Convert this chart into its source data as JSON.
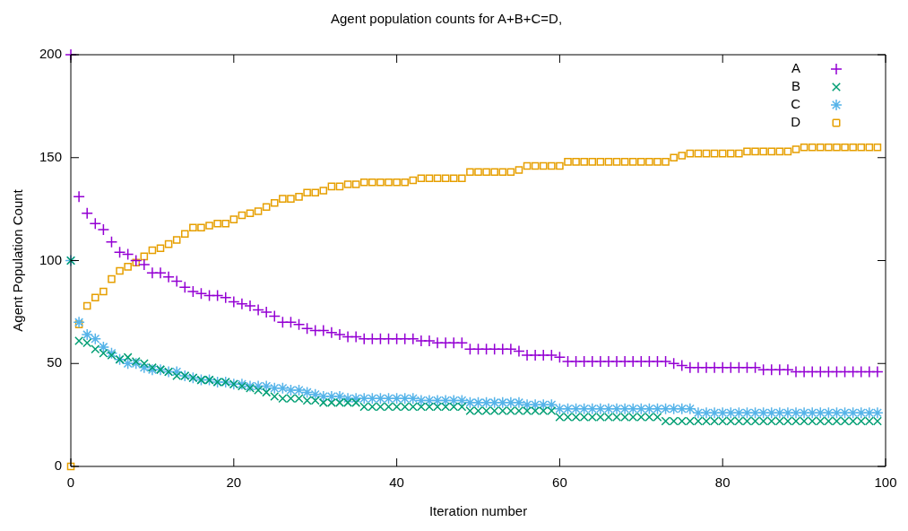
{
  "chart_data": {
    "type": "scatter",
    "title": "Agent population counts for A+B+C=D,",
    "xlabel": "Iteration number",
    "ylabel": "Agent Population Count",
    "x": [
      0,
      1,
      2,
      3,
      4,
      5,
      6,
      7,
      8,
      9,
      10,
      11,
      12,
      13,
      14,
      15,
      16,
      17,
      18,
      19,
      20,
      21,
      22,
      23,
      24,
      25,
      26,
      27,
      28,
      29,
      30,
      31,
      32,
      33,
      34,
      35,
      36,
      37,
      38,
      39,
      40,
      41,
      42,
      43,
      44,
      45,
      46,
      47,
      48,
      49,
      50,
      51,
      52,
      53,
      54,
      55,
      56,
      57,
      58,
      59,
      60,
      61,
      62,
      63,
      64,
      65,
      66,
      67,
      68,
      69,
      70,
      71,
      72,
      73,
      74,
      75,
      76,
      77,
      78,
      79,
      80,
      81,
      82,
      83,
      84,
      85,
      86,
      87,
      88,
      89,
      90,
      91,
      92,
      93,
      94,
      95,
      96,
      97,
      98,
      99
    ],
    "xlim": [
      0,
      100
    ],
    "xticks": [
      0,
      20,
      40,
      60,
      80,
      100
    ],
    "ylim": [
      0,
      200
    ],
    "yticks": [
      0,
      50,
      100,
      150,
      200
    ],
    "grid": false,
    "legend": "top right",
    "series": [
      {
        "name": "A",
        "color": "#9400d3",
        "values": [
          200,
          131,
          123,
          118,
          115,
          109,
          104,
          103,
          100,
          98,
          94,
          94,
          92,
          90,
          87,
          85,
          84,
          83,
          83,
          82,
          80,
          79,
          78,
          76,
          75,
          73,
          70,
          70,
          69,
          67,
          66,
          66,
          65,
          64,
          63,
          63,
          62,
          62,
          62,
          62,
          62,
          62,
          62,
          61,
          61,
          60,
          60,
          60,
          60,
          57,
          57,
          57,
          57,
          57,
          57,
          56,
          54,
          54,
          54,
          54,
          53,
          51,
          51,
          51,
          51,
          51,
          51,
          51,
          51,
          51,
          51,
          51,
          51,
          51,
          50,
          49,
          48,
          48,
          48,
          48,
          48,
          48,
          48,
          48,
          48,
          47,
          47,
          47,
          47,
          46,
          46,
          46,
          46,
          46,
          46,
          46,
          46,
          46,
          46,
          46
        ]
      },
      {
        "name": "B",
        "color": "#009e73",
        "values": [
          100,
          61,
          60,
          57,
          55,
          54,
          52,
          53,
          51,
          50,
          48,
          47,
          46,
          44,
          44,
          43,
          42,
          42,
          41,
          41,
          40,
          39,
          38,
          37,
          36,
          34,
          33,
          33,
          33,
          32,
          32,
          31,
          31,
          31,
          31,
          31,
          29,
          29,
          29,
          29,
          29,
          29,
          29,
          29,
          29,
          29,
          29,
          29,
          29,
          27,
          27,
          27,
          27,
          27,
          27,
          27,
          27,
          27,
          27,
          27,
          24,
          24,
          24,
          24,
          24,
          24,
          24,
          24,
          24,
          24,
          24,
          24,
          24,
          22,
          22,
          22,
          22,
          22,
          22,
          22,
          22,
          22,
          22,
          22,
          22,
          22,
          22,
          22,
          22,
          22,
          22,
          22,
          22,
          22,
          22,
          22,
          22,
          22,
          22,
          22
        ]
      },
      {
        "name": "C",
        "color": "#56b4e9",
        "values": [
          100,
          70,
          64,
          62,
          58,
          55,
          52,
          50,
          50,
          48,
          47,
          47,
          46,
          46,
          44,
          43,
          42,
          42,
          41,
          41,
          40,
          40,
          39,
          39,
          39,
          38,
          38,
          37,
          37,
          36,
          35,
          34,
          34,
          34,
          33,
          33,
          33,
          33,
          33,
          33,
          33,
          33,
          33,
          32,
          32,
          32,
          32,
          32,
          32,
          31,
          31,
          31,
          31,
          31,
          31,
          31,
          30,
          30,
          30,
          30,
          28,
          28,
          28,
          28,
          28,
          28,
          28,
          28,
          28,
          28,
          28,
          28,
          28,
          28,
          28,
          28,
          28,
          26,
          26,
          26,
          26,
          26,
          26,
          26,
          26,
          26,
          26,
          26,
          26,
          26,
          26,
          26,
          26,
          26,
          26,
          26,
          26,
          26,
          26,
          26
        ]
      },
      {
        "name": "D",
        "color": "#e69f00",
        "values": [
          0,
          69,
          78,
          82,
          85,
          91,
          95,
          97,
          99,
          102,
          105,
          106,
          108,
          110,
          113,
          116,
          116,
          117,
          118,
          118,
          120,
          122,
          123,
          124,
          126,
          128,
          130,
          130,
          131,
          133,
          133,
          134,
          136,
          136,
          137,
          137,
          138,
          138,
          138,
          138,
          138,
          138,
          139,
          140,
          140,
          140,
          140,
          140,
          140,
          143,
          143,
          143,
          143,
          143,
          143,
          144,
          146,
          146,
          146,
          146,
          146,
          148,
          148,
          148,
          148,
          148,
          148,
          148,
          148,
          148,
          148,
          148,
          148,
          148,
          150,
          151,
          152,
          152,
          152,
          152,
          152,
          152,
          152,
          153,
          153,
          153,
          153,
          153,
          153,
          154,
          155,
          155,
          155,
          155,
          155,
          155,
          155,
          155,
          155,
          155
        ]
      }
    ]
  }
}
